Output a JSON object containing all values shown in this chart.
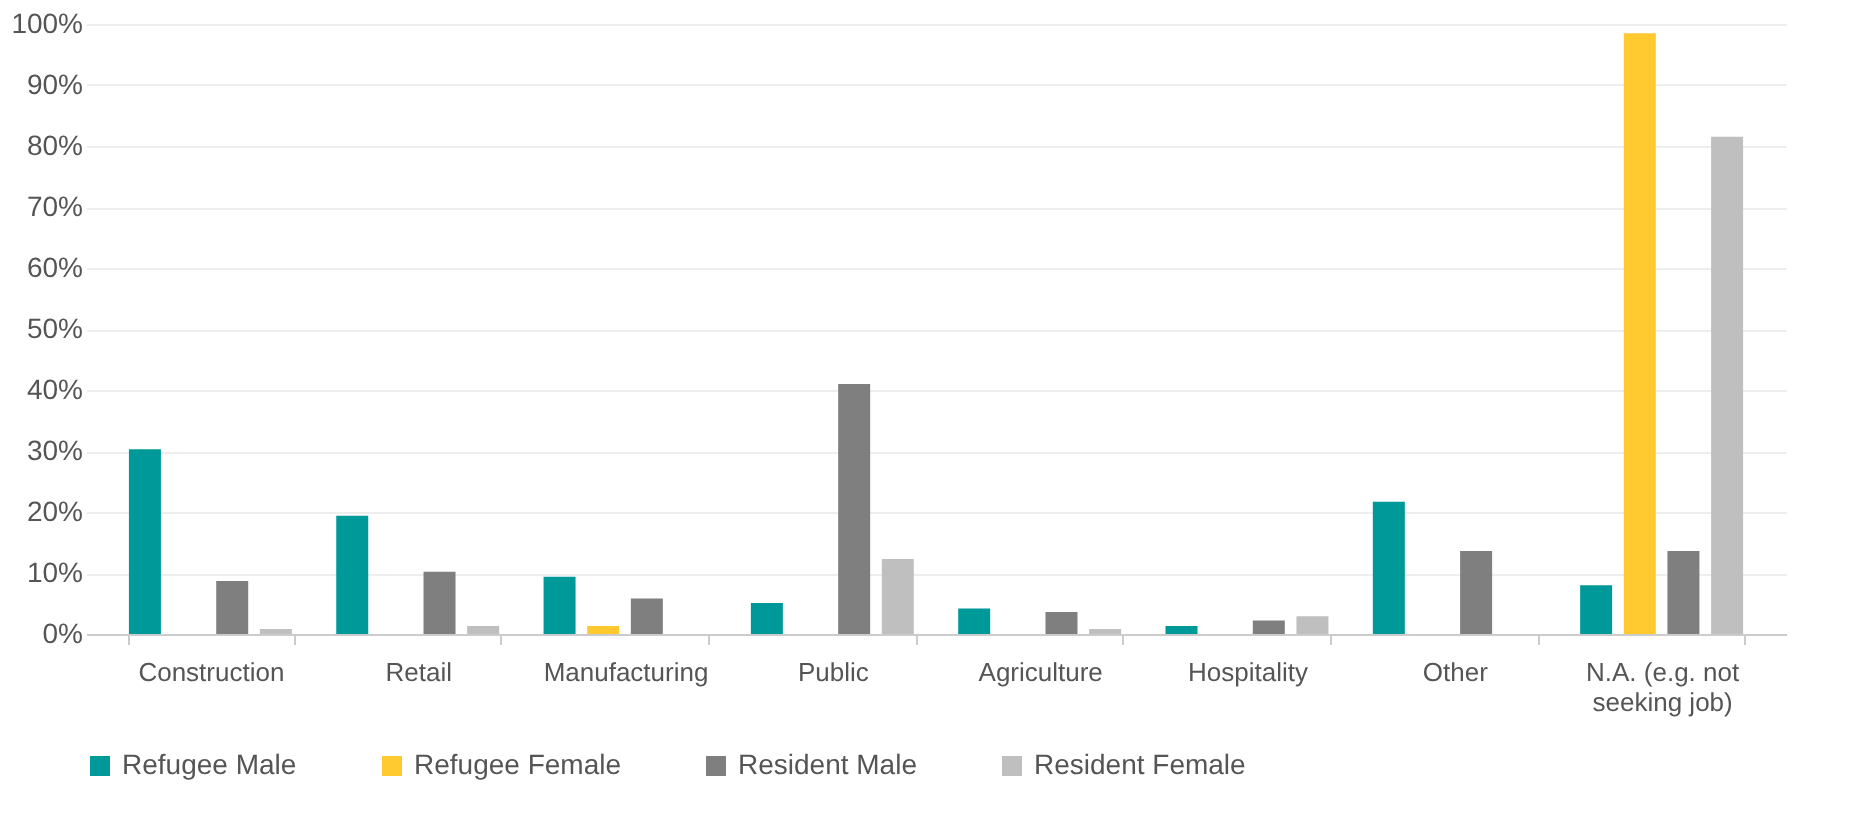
{
  "chart_data": {
    "type": "bar",
    "categories": [
      "Construction",
      "Retail",
      "Manufacturing",
      "Public",
      "Agriculture",
      "Hospitality",
      "Other",
      "N.A. (e.g. not seeking job)"
    ],
    "series": [
      {
        "name": "Refugee Male",
        "color": "#009999",
        "values": [
          30.3,
          19.4,
          9.4,
          5.1,
          4.2,
          1.3,
          21.7,
          8.0
        ]
      },
      {
        "name": "Refugee Female",
        "color": "#ffc92f",
        "values": [
          0,
          0,
          1.3,
          0,
          0,
          0,
          0,
          98.5
        ]
      },
      {
        "name": "Resident Male",
        "color": "#7f7f7f",
        "values": [
          8.7,
          10.2,
          5.8,
          41.0,
          3.6,
          2.2,
          13.6,
          13.6
        ]
      },
      {
        "name": "Resident Female",
        "color": "#bfbfbf",
        "values": [
          0.8,
          1.3,
          0,
          12.3,
          0.8,
          2.9,
          0,
          81.5
        ]
      }
    ],
    "ylim": [
      0,
      100
    ],
    "yticks": [
      {
        "value": 0,
        "label": "0%"
      },
      {
        "value": 10,
        "label": "10%"
      },
      {
        "value": 20,
        "label": "20%"
      },
      {
        "value": 30,
        "label": "30%"
      },
      {
        "value": 40,
        "label": "40%"
      },
      {
        "value": 50,
        "label": "50%"
      },
      {
        "value": 60,
        "label": "60%"
      },
      {
        "value": 70,
        "label": "70%"
      },
      {
        "value": 80,
        "label": "80%"
      },
      {
        "value": 90,
        "label": "90%"
      },
      {
        "value": 100,
        "label": "100%"
      }
    ],
    "grid": "y",
    "legend": "bottom"
  }
}
